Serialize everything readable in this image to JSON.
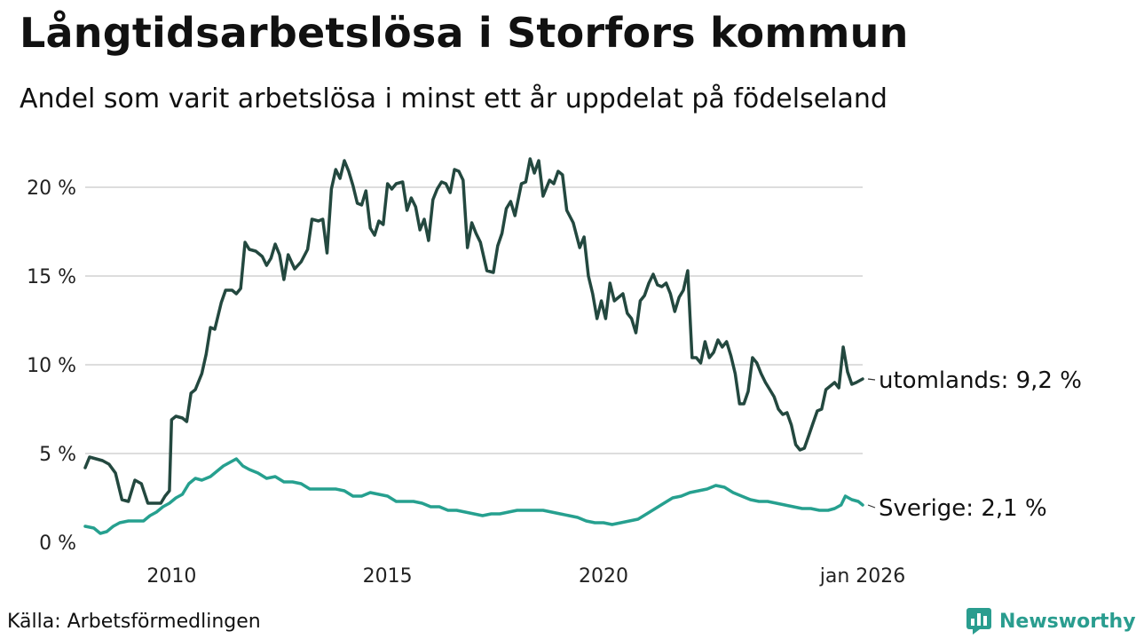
{
  "header": {
    "title": "Långtidsarbetslösa i Storfors kommun",
    "subtitle": "Andel som varit arbetslösa i minst ett år uppdelat på födelseland"
  },
  "footer": {
    "source": "Källa: Arbetsförmedlingen",
    "brand": "Newsworthy"
  },
  "colors": {
    "utomlands": "#23483f",
    "sverige": "#26a08f",
    "grid": "#dddddd",
    "brand": "#2a9d8f"
  },
  "chart_data": {
    "type": "line",
    "title": "Långtidsarbetslösa i Storfors kommun",
    "xlabel": "",
    "ylabel": "",
    "x_range": [
      2008.0,
      2026.0
    ],
    "ylim": [
      0,
      22
    ],
    "y_ticks": [
      0,
      5,
      10,
      15,
      20
    ],
    "y_tick_labels": [
      "0 %",
      "5 %",
      "10 %",
      "15 %",
      "20 %"
    ],
    "x_ticks": [
      2010,
      2015,
      2020,
      2026
    ],
    "x_tick_labels": [
      "2010",
      "2015",
      "2020",
      "jan 2026"
    ],
    "grid": true,
    "series": [
      {
        "name": "utomlands",
        "end_label": "utomlands: 9,2 %",
        "points": [
          [
            2008.0,
            4.2
          ],
          [
            2008.1,
            4.8
          ],
          [
            2008.25,
            4.7
          ],
          [
            2008.4,
            4.6
          ],
          [
            2008.55,
            4.4
          ],
          [
            2008.7,
            3.9
          ],
          [
            2008.85,
            2.4
          ],
          [
            2009.0,
            2.3
          ],
          [
            2009.15,
            3.5
          ],
          [
            2009.3,
            3.3
          ],
          [
            2009.45,
            2.2
          ],
          [
            2009.6,
            2.2
          ],
          [
            2009.75,
            2.2
          ],
          [
            2009.85,
            2.6
          ],
          [
            2009.95,
            2.9
          ],
          [
            2010.0,
            6.9
          ],
          [
            2010.1,
            7.1
          ],
          [
            2010.25,
            7.0
          ],
          [
            2010.35,
            6.8
          ],
          [
            2010.45,
            8.4
          ],
          [
            2010.55,
            8.6
          ],
          [
            2010.7,
            9.5
          ],
          [
            2010.8,
            10.6
          ],
          [
            2010.9,
            12.1
          ],
          [
            2011.0,
            12.0
          ],
          [
            2011.15,
            13.5
          ],
          [
            2011.25,
            14.2
          ],
          [
            2011.4,
            14.2
          ],
          [
            2011.5,
            14.0
          ],
          [
            2011.6,
            14.3
          ],
          [
            2011.7,
            16.9
          ],
          [
            2011.8,
            16.5
          ],
          [
            2011.95,
            16.4
          ],
          [
            2012.1,
            16.1
          ],
          [
            2012.2,
            15.6
          ],
          [
            2012.3,
            16.0
          ],
          [
            2012.4,
            16.8
          ],
          [
            2012.5,
            16.2
          ],
          [
            2012.6,
            14.8
          ],
          [
            2012.7,
            16.2
          ],
          [
            2012.85,
            15.4
          ],
          [
            2013.0,
            15.8
          ],
          [
            2013.15,
            16.5
          ],
          [
            2013.25,
            18.2
          ],
          [
            2013.4,
            18.1
          ],
          [
            2013.5,
            18.2
          ],
          [
            2013.6,
            16.3
          ],
          [
            2013.7,
            19.9
          ],
          [
            2013.8,
            21.0
          ],
          [
            2013.9,
            20.5
          ],
          [
            2014.0,
            21.5
          ],
          [
            2014.1,
            20.9
          ],
          [
            2014.2,
            20.1
          ],
          [
            2014.3,
            19.1
          ],
          [
            2014.4,
            19.0
          ],
          [
            2014.5,
            19.8
          ],
          [
            2014.6,
            17.7
          ],
          [
            2014.7,
            17.3
          ],
          [
            2014.8,
            18.1
          ],
          [
            2014.9,
            17.9
          ],
          [
            2015.0,
            20.2
          ],
          [
            2015.1,
            19.9
          ],
          [
            2015.2,
            20.2
          ],
          [
            2015.35,
            20.3
          ],
          [
            2015.45,
            18.7
          ],
          [
            2015.55,
            19.4
          ],
          [
            2015.65,
            18.9
          ],
          [
            2015.75,
            17.6
          ],
          [
            2015.85,
            18.2
          ],
          [
            2015.95,
            17.0
          ],
          [
            2016.05,
            19.3
          ],
          [
            2016.15,
            19.9
          ],
          [
            2016.25,
            20.3
          ],
          [
            2016.35,
            20.2
          ],
          [
            2016.45,
            19.7
          ],
          [
            2016.55,
            21.0
          ],
          [
            2016.65,
            20.9
          ],
          [
            2016.75,
            20.4
          ],
          [
            2016.85,
            16.6
          ],
          [
            2016.95,
            18.0
          ],
          [
            2017.05,
            17.4
          ],
          [
            2017.15,
            16.9
          ],
          [
            2017.3,
            15.3
          ],
          [
            2017.45,
            15.2
          ],
          [
            2017.55,
            16.7
          ],
          [
            2017.65,
            17.4
          ],
          [
            2017.75,
            18.8
          ],
          [
            2017.85,
            19.2
          ],
          [
            2017.95,
            18.4
          ],
          [
            2018.1,
            20.2
          ],
          [
            2018.2,
            20.3
          ],
          [
            2018.3,
            21.6
          ],
          [
            2018.4,
            20.8
          ],
          [
            2018.5,
            21.5
          ],
          [
            2018.6,
            19.5
          ],
          [
            2018.75,
            20.4
          ],
          [
            2018.85,
            20.2
          ],
          [
            2018.95,
            20.9
          ],
          [
            2019.05,
            20.7
          ],
          [
            2019.15,
            18.7
          ],
          [
            2019.3,
            18.0
          ],
          [
            2019.45,
            16.6
          ],
          [
            2019.55,
            17.2
          ],
          [
            2019.65,
            15.0
          ],
          [
            2019.75,
            14.0
          ],
          [
            2019.85,
            12.6
          ],
          [
            2019.95,
            13.6
          ],
          [
            2020.05,
            12.6
          ],
          [
            2020.15,
            14.6
          ],
          [
            2020.25,
            13.6
          ],
          [
            2020.35,
            13.8
          ],
          [
            2020.45,
            14.0
          ],
          [
            2020.55,
            12.9
          ],
          [
            2020.65,
            12.6
          ],
          [
            2020.75,
            11.8
          ],
          [
            2020.85,
            13.6
          ],
          [
            2020.95,
            13.9
          ],
          [
            2021.05,
            14.6
          ],
          [
            2021.15,
            15.1
          ],
          [
            2021.25,
            14.5
          ],
          [
            2021.35,
            14.4
          ],
          [
            2021.45,
            14.6
          ],
          [
            2021.55,
            14.0
          ],
          [
            2021.65,
            13.0
          ],
          [
            2021.75,
            13.8
          ],
          [
            2021.85,
            14.2
          ],
          [
            2021.95,
            15.3
          ],
          [
            2022.05,
            10.4
          ],
          [
            2022.15,
            10.4
          ],
          [
            2022.25,
            10.1
          ],
          [
            2022.35,
            11.3
          ],
          [
            2022.45,
            10.4
          ],
          [
            2022.55,
            10.7
          ],
          [
            2022.65,
            11.4
          ],
          [
            2022.75,
            11.0
          ],
          [
            2022.85,
            11.3
          ],
          [
            2022.95,
            10.5
          ],
          [
            2023.05,
            9.5
          ],
          [
            2023.15,
            7.8
          ],
          [
            2023.25,
            7.8
          ],
          [
            2023.35,
            8.5
          ],
          [
            2023.45,
            10.4
          ],
          [
            2023.55,
            10.1
          ],
          [
            2023.65,
            9.5
          ],
          [
            2023.75,
            9.0
          ],
          [
            2023.85,
            8.6
          ],
          [
            2023.95,
            8.2
          ],
          [
            2024.05,
            7.5
          ],
          [
            2024.15,
            7.2
          ],
          [
            2024.25,
            7.3
          ],
          [
            2024.35,
            6.6
          ],
          [
            2024.45,
            5.5
          ],
          [
            2024.55,
            5.2
          ],
          [
            2024.65,
            5.3
          ],
          [
            2024.75,
            6.0
          ],
          [
            2024.85,
            6.7
          ],
          [
            2024.95,
            7.4
          ],
          [
            2025.05,
            7.5
          ],
          [
            2025.15,
            8.6
          ],
          [
            2025.25,
            8.8
          ],
          [
            2025.35,
            9.0
          ],
          [
            2025.45,
            8.7
          ],
          [
            2025.55,
            11.0
          ],
          [
            2025.65,
            9.6
          ],
          [
            2025.75,
            8.9
          ],
          [
            2025.85,
            9.0
          ],
          [
            2026.0,
            9.2
          ]
        ]
      },
      {
        "name": "Sverige",
        "end_label": "Sverige: 2,1 %",
        "points": [
          [
            2008.0,
            0.9
          ],
          [
            2008.2,
            0.8
          ],
          [
            2008.35,
            0.5
          ],
          [
            2008.5,
            0.6
          ],
          [
            2008.65,
            0.9
          ],
          [
            2008.8,
            1.1
          ],
          [
            2009.0,
            1.2
          ],
          [
            2009.2,
            1.2
          ],
          [
            2009.35,
            1.2
          ],
          [
            2009.5,
            1.5
          ],
          [
            2009.65,
            1.7
          ],
          [
            2009.8,
            2.0
          ],
          [
            2009.95,
            2.2
          ],
          [
            2010.1,
            2.5
          ],
          [
            2010.25,
            2.7
          ],
          [
            2010.4,
            3.3
          ],
          [
            2010.55,
            3.6
          ],
          [
            2010.7,
            3.5
          ],
          [
            2010.9,
            3.7
          ],
          [
            2011.05,
            4.0
          ],
          [
            2011.2,
            4.3
          ],
          [
            2011.35,
            4.5
          ],
          [
            2011.5,
            4.7
          ],
          [
            2011.65,
            4.3
          ],
          [
            2011.8,
            4.1
          ],
          [
            2012.0,
            3.9
          ],
          [
            2012.2,
            3.6
          ],
          [
            2012.4,
            3.7
          ],
          [
            2012.6,
            3.4
          ],
          [
            2012.8,
            3.4
          ],
          [
            2013.0,
            3.3
          ],
          [
            2013.2,
            3.0
          ],
          [
            2013.4,
            3.0
          ],
          [
            2013.6,
            3.0
          ],
          [
            2013.8,
            3.0
          ],
          [
            2014.0,
            2.9
          ],
          [
            2014.2,
            2.6
          ],
          [
            2014.4,
            2.6
          ],
          [
            2014.6,
            2.8
          ],
          [
            2014.8,
            2.7
          ],
          [
            2015.0,
            2.6
          ],
          [
            2015.2,
            2.3
          ],
          [
            2015.4,
            2.3
          ],
          [
            2015.6,
            2.3
          ],
          [
            2015.8,
            2.2
          ],
          [
            2016.0,
            2.0
          ],
          [
            2016.2,
            2.0
          ],
          [
            2016.4,
            1.8
          ],
          [
            2016.6,
            1.8
          ],
          [
            2016.8,
            1.7
          ],
          [
            2017.0,
            1.6
          ],
          [
            2017.2,
            1.5
          ],
          [
            2017.4,
            1.6
          ],
          [
            2017.6,
            1.6
          ],
          [
            2017.8,
            1.7
          ],
          [
            2018.0,
            1.8
          ],
          [
            2018.2,
            1.8
          ],
          [
            2018.4,
            1.8
          ],
          [
            2018.6,
            1.8
          ],
          [
            2018.8,
            1.7
          ],
          [
            2019.0,
            1.6
          ],
          [
            2019.2,
            1.5
          ],
          [
            2019.4,
            1.4
          ],
          [
            2019.6,
            1.2
          ],
          [
            2019.8,
            1.1
          ],
          [
            2020.0,
            1.1
          ],
          [
            2020.2,
            1.0
          ],
          [
            2020.4,
            1.1
          ],
          [
            2020.6,
            1.2
          ],
          [
            2020.8,
            1.3
          ],
          [
            2021.0,
            1.6
          ],
          [
            2021.2,
            1.9
          ],
          [
            2021.4,
            2.2
          ],
          [
            2021.6,
            2.5
          ],
          [
            2021.8,
            2.6
          ],
          [
            2022.0,
            2.8
          ],
          [
            2022.2,
            2.9
          ],
          [
            2022.4,
            3.0
          ],
          [
            2022.6,
            3.2
          ],
          [
            2022.8,
            3.1
          ],
          [
            2023.0,
            2.8
          ],
          [
            2023.2,
            2.6
          ],
          [
            2023.4,
            2.4
          ],
          [
            2023.6,
            2.3
          ],
          [
            2023.8,
            2.3
          ],
          [
            2024.0,
            2.2
          ],
          [
            2024.2,
            2.1
          ],
          [
            2024.4,
            2.0
          ],
          [
            2024.6,
            1.9
          ],
          [
            2024.8,
            1.9
          ],
          [
            2025.0,
            1.8
          ],
          [
            2025.2,
            1.8
          ],
          [
            2025.35,
            1.9
          ],
          [
            2025.5,
            2.1
          ],
          [
            2025.6,
            2.6
          ],
          [
            2025.75,
            2.4
          ],
          [
            2025.9,
            2.3
          ],
          [
            2026.0,
            2.1
          ]
        ]
      }
    ]
  }
}
